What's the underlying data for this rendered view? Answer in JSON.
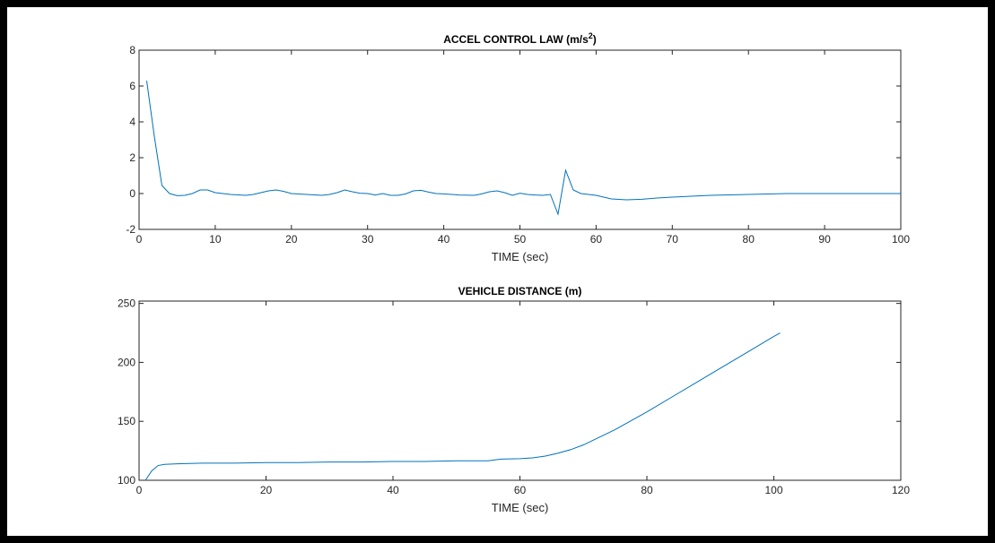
{
  "figure": {
    "background": "#ffffff",
    "border_color": "#000000",
    "line_color": "#0072BD"
  },
  "chart_data": [
    {
      "type": "line",
      "title": "ACCEL CONTROL LAW (m/s",
      "title_superscript": "2",
      "title_suffix": ")",
      "xlabel": "TIME (sec)",
      "ylabel": "",
      "xlim": [
        0,
        100
      ],
      "ylim": [
        -2,
        8
      ],
      "xticks": [
        0,
        10,
        20,
        30,
        40,
        50,
        60,
        70,
        80,
        90,
        100
      ],
      "yticks": [
        -2,
        0,
        2,
        4,
        6,
        8
      ],
      "grid": false,
      "series": [
        {
          "x": [
            1,
            2,
            3,
            4,
            5,
            6,
            7,
            8,
            9,
            10,
            12,
            14,
            15,
            16,
            17,
            18,
            19,
            20,
            22,
            24,
            25,
            26,
            27,
            28,
            29,
            30,
            31,
            32,
            33,
            34,
            35,
            36,
            37,
            38,
            39,
            40,
            42,
            44,
            45,
            46,
            47,
            48,
            49,
            50,
            51,
            52,
            53,
            54,
            55,
            56,
            57,
            58,
            59,
            60,
            62,
            64,
            66,
            68,
            70,
            75,
            80,
            85,
            90,
            95,
            100
          ],
          "y": [
            6.3,
            3.2,
            0.45,
            0.0,
            -0.12,
            -0.1,
            0.0,
            0.2,
            0.2,
            0.05,
            -0.05,
            -0.1,
            -0.05,
            0.05,
            0.15,
            0.2,
            0.12,
            0.0,
            -0.05,
            -0.1,
            -0.05,
            0.05,
            0.2,
            0.1,
            0.02,
            0.0,
            -0.08,
            0.0,
            -0.1,
            -0.1,
            -0.02,
            0.15,
            0.18,
            0.08,
            0.0,
            -0.02,
            -0.08,
            -0.1,
            -0.02,
            0.1,
            0.15,
            0.05,
            -0.1,
            0.02,
            -0.05,
            -0.08,
            -0.1,
            -0.05,
            -1.15,
            1.3,
            0.2,
            0.0,
            -0.05,
            -0.1,
            -0.3,
            -0.35,
            -0.32,
            -0.25,
            -0.2,
            -0.1,
            -0.05,
            0.0,
            0.0,
            0.0,
            0.0
          ]
        }
      ]
    },
    {
      "type": "line",
      "title": "VEHICLE DISTANCE (m)",
      "xlabel": "TIME (sec)",
      "ylabel": "",
      "xlim": [
        0,
        120
      ],
      "ylim": [
        100,
        252
      ],
      "xticks": [
        0,
        20,
        40,
        60,
        80,
        100,
        120
      ],
      "yticks": [
        100,
        150,
        200,
        250
      ],
      "grid": false,
      "series": [
        {
          "x": [
            1,
            2,
            3,
            4,
            6,
            10,
            15,
            20,
            25,
            30,
            35,
            40,
            45,
            50,
            55,
            57,
            60,
            62,
            64,
            66,
            68,
            70,
            75,
            80,
            85,
            90,
            95,
            100,
            101
          ],
          "y": [
            100,
            108,
            112.5,
            113.5,
            114,
            114.5,
            114.5,
            115,
            115,
            115.5,
            115.5,
            116,
            116,
            116.5,
            116.5,
            118,
            118.3,
            119,
            120.5,
            123,
            126,
            130,
            143,
            158,
            174,
            190,
            206,
            222,
            225
          ]
        }
      ]
    }
  ]
}
